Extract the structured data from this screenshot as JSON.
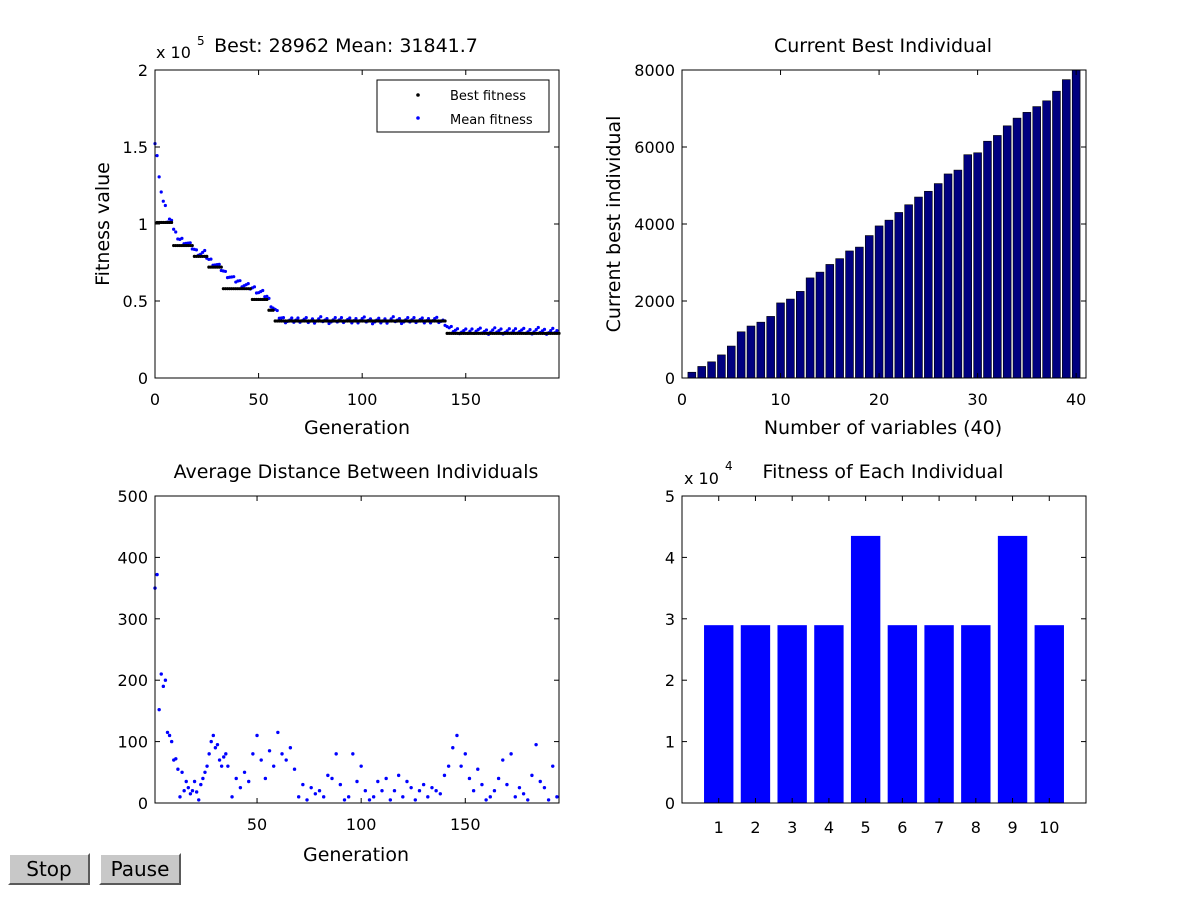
{
  "controls": {
    "stop_label": "Stop",
    "pause_label": "Pause"
  },
  "chart_data": [
    {
      "type": "scatter",
      "title": "Best: 28962 Mean: 31841.7",
      "xlabel": "Generation",
      "ylabel": "Fitness value",
      "xlim": [
        0,
        195
      ],
      "ylim": [
        0,
        200000
      ],
      "xticks": [
        "0",
        "50",
        "100",
        "150"
      ],
      "yticks": [
        "0",
        "0.5",
        "1",
        "1.5",
        "2"
      ],
      "exponent_label": "x 10",
      "exponent": "5",
      "legend_position": "top-right",
      "colors": {
        "best": "#000000",
        "mean": "#0000ff"
      },
      "series": [
        {
          "name": "Best fitness",
          "color": "#000000",
          "segments": [
            [
              0,
              108000
            ],
            [
              1,
              101000
            ],
            [
              8,
              101000
            ],
            [
              9,
              86000
            ],
            [
              18,
              86000
            ],
            [
              19,
              79000
            ],
            [
              25,
              79000
            ],
            [
              26,
              72000
            ],
            [
              32,
              72000
            ],
            [
              33,
              58000
            ],
            [
              46,
              58000
            ],
            [
              47,
              51000
            ],
            [
              54,
              51000
            ],
            [
              55,
              44000
            ],
            [
              57,
              44000
            ],
            [
              58,
              37000
            ],
            [
              140,
              37000
            ],
            [
              141,
              29000
            ],
            [
              195,
              29000
            ]
          ]
        },
        {
          "name": "Mean fitness",
          "color": "#0000ff",
          "points": [
            [
              0,
              154000
            ],
            [
              1,
              145000
            ],
            [
              2,
              130000
            ],
            [
              3,
              119000
            ],
            [
              4,
              116000
            ],
            [
              5,
              112000
            ],
            [
              6,
              100000
            ],
            [
              7,
              105000
            ],
            [
              8,
              103000
            ],
            [
              9,
              96000
            ],
            [
              10,
              93000
            ],
            [
              12,
              90000
            ],
            [
              14,
              89000
            ],
            [
              16,
              87000
            ],
            [
              18,
              85000
            ],
            [
              20,
              82000
            ],
            [
              22,
              81000
            ],
            [
              24,
              81000
            ],
            [
              26,
              77000
            ],
            [
              28,
              75000
            ],
            [
              30,
              73000
            ],
            [
              32,
              71000
            ],
            [
              34,
              68000
            ],
            [
              36,
              66000
            ],
            [
              38,
              64000
            ],
            [
              40,
              63000
            ],
            [
              42,
              61000
            ],
            [
              44,
              60000
            ],
            [
              46,
              59000
            ],
            [
              48,
              58000
            ],
            [
              50,
              56000
            ],
            [
              52,
              55000
            ],
            [
              54,
              53000
            ],
            [
              56,
              48000
            ],
            [
              58,
              44000
            ],
            [
              60,
              40000
            ],
            [
              62,
              38000
            ],
            [
              65,
              37000
            ],
            [
              70,
              38000
            ],
            [
              75,
              37000
            ],
            [
              80,
              38000
            ],
            [
              85,
              37000
            ],
            [
              90,
              38000
            ],
            [
              95,
              37000
            ],
            [
              100,
              38000
            ],
            [
              105,
              37000
            ],
            [
              110,
              37000
            ],
            [
              115,
              38000
            ],
            [
              120,
              37000
            ],
            [
              125,
              38000
            ],
            [
              130,
              37000
            ],
            [
              135,
              38000
            ],
            [
              140,
              36000
            ],
            [
              142,
              32000
            ],
            [
              145,
              31000
            ],
            [
              150,
              30000
            ],
            [
              155,
              31000
            ],
            [
              160,
              30000
            ],
            [
              165,
              31000
            ],
            [
              170,
              30000
            ],
            [
              175,
              31000
            ],
            [
              180,
              30000
            ],
            [
              185,
              31000
            ],
            [
              190,
              30000
            ],
            [
              195,
              31000
            ]
          ]
        }
      ]
    },
    {
      "type": "bar",
      "title": "Current Best Individual",
      "xlabel": "Number of variables (40)",
      "ylabel": "Current best individual",
      "xlim": [
        0,
        41
      ],
      "ylim": [
        0,
        8000
      ],
      "xticks": [
        "0",
        "10",
        "20",
        "30",
        "40"
      ],
      "yticks": [
        "0",
        "2000",
        "4000",
        "6000",
        "8000"
      ],
      "bar_color": "#000080",
      "categories": [
        1,
        2,
        3,
        4,
        5,
        6,
        7,
        8,
        9,
        10,
        11,
        12,
        13,
        14,
        15,
        16,
        17,
        18,
        19,
        20,
        21,
        22,
        23,
        24,
        25,
        26,
        27,
        28,
        29,
        30,
        31,
        32,
        33,
        34,
        35,
        36,
        37,
        38,
        39,
        40
      ],
      "values": [
        150,
        300,
        420,
        600,
        830,
        1200,
        1350,
        1450,
        1600,
        1950,
        2050,
        2250,
        2600,
        2750,
        2950,
        3100,
        3300,
        3400,
        3700,
        3950,
        4100,
        4300,
        4500,
        4700,
        4850,
        5050,
        5300,
        5400,
        5800,
        5850,
        6150,
        6300,
        6550,
        6750,
        6900,
        7050,
        7200,
        7450,
        7750,
        8000
      ]
    },
    {
      "type": "scatter",
      "title": "Average Distance Between Individuals",
      "xlabel": "Generation",
      "ylabel": "",
      "xlim": [
        1,
        195
      ],
      "ylim": [
        0,
        500
      ],
      "xticks": [
        "50",
        "100",
        "150"
      ],
      "yticks": [
        "0",
        "100",
        "200",
        "300",
        "400",
        "500"
      ],
      "series": [
        {
          "name": "Average distance",
          "color": "#0000ff",
          "points": [
            [
              1,
              350
            ],
            [
              2,
              372
            ],
            [
              3,
              152
            ],
            [
              4,
              210
            ],
            [
              5,
              190
            ],
            [
              6,
              200
            ],
            [
              7,
              115
            ],
            [
              8,
              110
            ],
            [
              9,
              100
            ],
            [
              10,
              70
            ],
            [
              11,
              72
            ],
            [
              12,
              55
            ],
            [
              13,
              10
            ],
            [
              14,
              50
            ],
            [
              15,
              20
            ],
            [
              16,
              35
            ],
            [
              17,
              25
            ],
            [
              18,
              15
            ],
            [
              19,
              20
            ],
            [
              20,
              35
            ],
            [
              21,
              18
            ],
            [
              22,
              5
            ],
            [
              23,
              30
            ],
            [
              24,
              40
            ],
            [
              25,
              50
            ],
            [
              26,
              60
            ],
            [
              27,
              80
            ],
            [
              28,
              100
            ],
            [
              29,
              110
            ],
            [
              30,
              90
            ],
            [
              31,
              95
            ],
            [
              32,
              70
            ],
            [
              33,
              60
            ],
            [
              34,
              75
            ],
            [
              35,
              80
            ],
            [
              36,
              60
            ],
            [
              38,
              10
            ],
            [
              40,
              40
            ],
            [
              42,
              25
            ],
            [
              44,
              50
            ],
            [
              46,
              35
            ],
            [
              48,
              80
            ],
            [
              50,
              110
            ],
            [
              52,
              70
            ],
            [
              54,
              40
            ],
            [
              56,
              85
            ],
            [
              58,
              60
            ],
            [
              60,
              115
            ],
            [
              62,
              80
            ],
            [
              64,
              70
            ],
            [
              66,
              90
            ],
            [
              68,
              55
            ],
            [
              70,
              10
            ],
            [
              72,
              30
            ],
            [
              74,
              5
            ],
            [
              76,
              25
            ],
            [
              78,
              15
            ],
            [
              80,
              20
            ],
            [
              82,
              10
            ],
            [
              84,
              45
            ],
            [
              86,
              40
            ],
            [
              88,
              80
            ],
            [
              90,
              30
            ],
            [
              92,
              5
            ],
            [
              94,
              10
            ],
            [
              96,
              80
            ],
            [
              98,
              35
            ],
            [
              100,
              60
            ],
            [
              102,
              20
            ],
            [
              104,
              5
            ],
            [
              106,
              10
            ],
            [
              108,
              35
            ],
            [
              110,
              20
            ],
            [
              112,
              40
            ],
            [
              114,
              5
            ],
            [
              116,
              20
            ],
            [
              118,
              45
            ],
            [
              120,
              10
            ],
            [
              122,
              35
            ],
            [
              124,
              25
            ],
            [
              126,
              5
            ],
            [
              128,
              20
            ],
            [
              130,
              30
            ],
            [
              132,
              10
            ],
            [
              134,
              25
            ],
            [
              136,
              20
            ],
            [
              138,
              15
            ],
            [
              140,
              45
            ],
            [
              142,
              60
            ],
            [
              144,
              90
            ],
            [
              146,
              110
            ],
            [
              148,
              60
            ],
            [
              150,
              80
            ],
            [
              152,
              40
            ],
            [
              154,
              20
            ],
            [
              156,
              55
            ],
            [
              158,
              30
            ],
            [
              160,
              5
            ],
            [
              162,
              10
            ],
            [
              164,
              20
            ],
            [
              166,
              40
            ],
            [
              168,
              70
            ],
            [
              170,
              30
            ],
            [
              172,
              80
            ],
            [
              174,
              10
            ],
            [
              176,
              25
            ],
            [
              178,
              15
            ],
            [
              180,
              5
            ],
            [
              182,
              45
            ],
            [
              184,
              95
            ],
            [
              186,
              35
            ],
            [
              188,
              25
            ],
            [
              190,
              5
            ],
            [
              192,
              60
            ],
            [
              194,
              10
            ]
          ]
        }
      ]
    },
    {
      "type": "bar",
      "title": "Fitness of Each Individual",
      "xlabel": "",
      "ylabel": "",
      "xlim": [
        0,
        11
      ],
      "ylim": [
        0,
        50000
      ],
      "xticks": [
        "1",
        "2",
        "3",
        "4",
        "5",
        "6",
        "7",
        "8",
        "9",
        "10"
      ],
      "yticks": [
        "0",
        "1",
        "2",
        "3",
        "4",
        "5"
      ],
      "exponent_label": "x 10",
      "exponent": "4",
      "bar_color": "#0000ff",
      "categories": [
        1,
        2,
        3,
        4,
        5,
        6,
        7,
        8,
        9,
        10
      ],
      "values": [
        28962,
        28962,
        28962,
        28962,
        43500,
        28962,
        28962,
        28962,
        43500,
        28962
      ]
    }
  ]
}
